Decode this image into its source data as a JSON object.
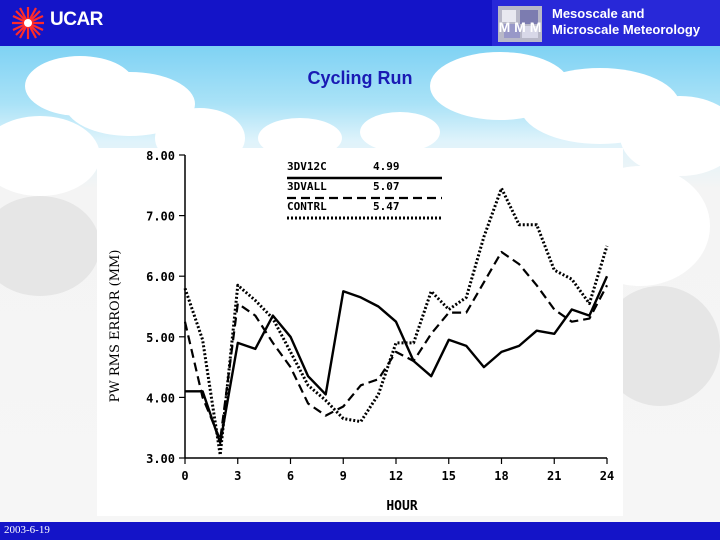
{
  "header": {
    "logo_text": "UCAR",
    "org_line1": "Mesoscale and",
    "org_line2": "Microscale Meteorology",
    "mmm_icon_letters": "M M M"
  },
  "slide": {
    "title": "Cycling Run",
    "date": "2003-6-19"
  },
  "colors": {
    "bar": "#1414c8",
    "title": "#1a1ab4",
    "line": "#000000"
  },
  "chart_data": {
    "type": "line",
    "xlabel": "HOUR",
    "ylabel": "PW RMS ERROR (MM)",
    "xlim": [
      0,
      24
    ],
    "ylim": [
      3,
      8
    ],
    "xticks": [
      "0",
      "3",
      "6",
      "9",
      "12",
      "15",
      "18",
      "21",
      "24"
    ],
    "yticks": [
      "3.00",
      "4.00",
      "5.00",
      "6.00",
      "7.00",
      "8.00"
    ],
    "grid": false,
    "legend_position": "top-center",
    "series": [
      {
        "name": "3DV12C",
        "score": "4.99",
        "style": "solid",
        "x": [
          0,
          1,
          2,
          3,
          4,
          5,
          6,
          7,
          8,
          9,
          10,
          11,
          12,
          13,
          14,
          15,
          16,
          17,
          18,
          19,
          20,
          21,
          22,
          23,
          24
        ],
        "values": [
          4.1,
          4.1,
          3.25,
          4.9,
          4.8,
          5.35,
          5.0,
          4.35,
          4.05,
          5.75,
          5.65,
          5.5,
          5.25,
          4.6,
          4.35,
          4.95,
          4.85,
          4.5,
          4.75,
          4.85,
          5.1,
          5.05,
          5.45,
          5.35,
          6.0
        ]
      },
      {
        "name": "3DVALL",
        "score": "5.07",
        "style": "dashed",
        "x": [
          0,
          1,
          2,
          3,
          4,
          5,
          6,
          7,
          8,
          9,
          10,
          11,
          12,
          13,
          14,
          15,
          16,
          17,
          18,
          19,
          20,
          21,
          22,
          23,
          24
        ],
        "values": [
          5.25,
          4.0,
          3.3,
          5.55,
          5.35,
          4.9,
          4.5,
          3.9,
          3.7,
          3.85,
          4.2,
          4.3,
          4.75,
          4.6,
          5.05,
          5.4,
          5.4,
          5.9,
          6.4,
          6.2,
          5.85,
          5.45,
          5.25,
          5.3,
          5.85
        ]
      },
      {
        "name": "CONTRL",
        "score": "5.47",
        "style": "dotted",
        "x": [
          0,
          1,
          2,
          3,
          4,
          5,
          6,
          7,
          8,
          9,
          10,
          11,
          12,
          13,
          14,
          15,
          16,
          17,
          18,
          19,
          20,
          21,
          22,
          23,
          24
        ],
        "values": [
          5.8,
          4.95,
          3.05,
          5.85,
          5.6,
          5.3,
          4.75,
          4.2,
          3.95,
          3.65,
          3.6,
          4.05,
          4.9,
          4.9,
          5.75,
          5.45,
          5.65,
          6.65,
          7.45,
          6.85,
          6.85,
          6.1,
          5.95,
          5.55,
          6.5
        ]
      }
    ]
  }
}
